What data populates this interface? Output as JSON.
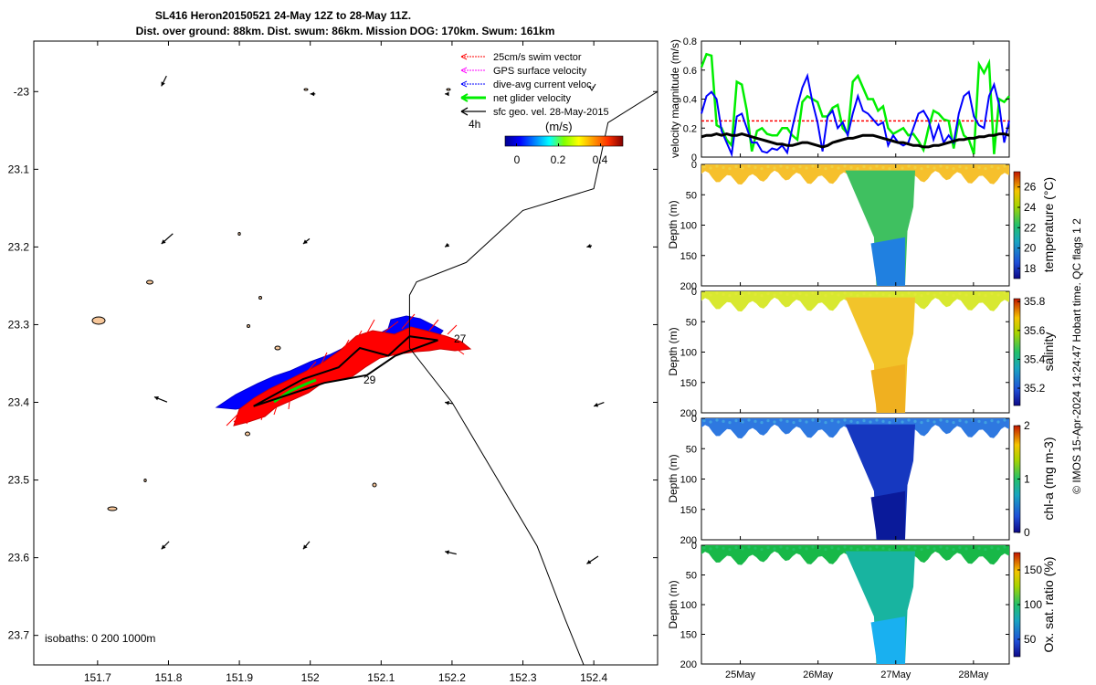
{
  "title": {
    "line1": "SL416 Heron20150521 24-May 12Z to 28-May 11Z.",
    "line2": "Dist. over ground: 88km. Dist. swum: 86km. Mission DOG: 170km. Swum: 161km"
  },
  "side_label": "© IMOS 15-Apr-2024 14:24:47 Hobart time. QC flags 1 2",
  "chart_data": [
    {
      "type": "scatter",
      "name": "map",
      "x_ticks": [
        "151.7",
        "151.8",
        "151.9",
        "152",
        "152.1",
        "152.2",
        "152.3",
        "152.4"
      ],
      "y_ticks": [
        "-23",
        "23.1",
        "23.2",
        "23.3",
        "23.4",
        "23.5",
        "23.6",
        "23.7"
      ],
      "xlim": [
        151.61,
        152.49
      ],
      "ylim": [
        -23.738,
        -22.935
      ],
      "isobaths_label": "isobaths: 0   200  1000m",
      "legend": [
        {
          "label": "25cm/s swim vector",
          "color": "#ff0000"
        },
        {
          "label": "GPS surface velocity",
          "color": "#ff00ff"
        },
        {
          "label": "dive-avg current veloc.",
          "color": "#0000ff"
        },
        {
          "label": "net glider velocity",
          "color": "#00ee00"
        },
        {
          "label": "sfc geo. vel. 28-May-2015",
          "color": "#000000"
        }
      ],
      "colorbar": {
        "label": "(m/s)",
        "timestep_label": "4h",
        "ticks": [
          "0",
          "0.2",
          "0.4"
        ],
        "range": [
          0,
          0.5
        ]
      },
      "day_labels": [
        "27",
        "29"
      ],
      "track": [
        [
          151.92,
          -23.405
        ],
        [
          151.97,
          -23.39
        ],
        [
          152.02,
          -23.375
        ],
        [
          152.08,
          -23.365
        ],
        [
          152.12,
          -23.34
        ],
        [
          152.18,
          -23.32
        ],
        [
          152.14,
          -23.315
        ],
        [
          152.11,
          -23.34
        ],
        [
          152.07,
          -23.33
        ],
        [
          152.04,
          -23.355
        ],
        [
          151.99,
          -23.37
        ],
        [
          151.95,
          -23.39
        ],
        [
          151.92,
          -23.405
        ]
      ],
      "isobath_1000m": [
        [
          152.49,
          -23.0
        ],
        [
          152.42,
          -23.04
        ],
        [
          152.4,
          -23.125
        ],
        [
          152.3,
          -23.153
        ],
        [
          152.22,
          -23.22
        ],
        [
          152.15,
          -23.245
        ],
        [
          152.14,
          -23.262
        ],
        [
          152.14,
          -23.33
        ],
        [
          152.2,
          -23.4
        ],
        [
          152.32,
          -23.585
        ],
        [
          152.36,
          -23.68
        ],
        [
          152.4,
          -23.77
        ]
      ],
      "geo_vectors": [
        {
          "lon": 151.79,
          "lat": -22.993,
          "u": 0.4,
          "v": 0.8
        },
        {
          "lon": 152.0,
          "lat": -23.003,
          "u": 0.4,
          "v": 0.0
        },
        {
          "lon": 152.19,
          "lat": -23.003,
          "u": 0.3,
          "v": 0.0
        },
        {
          "lon": 151.79,
          "lat": -23.196,
          "u": 0.9,
          "v": 0.8
        },
        {
          "lon": 151.99,
          "lat": -23.196,
          "u": 0.5,
          "v": 0.4
        },
        {
          "lon": 152.19,
          "lat": -23.2,
          "u": 0.3,
          "v": 0.2
        },
        {
          "lon": 152.39,
          "lat": -23.2,
          "u": 0.4,
          "v": 0.1
        },
        {
          "lon": 151.78,
          "lat": -23.393,
          "u": 1.0,
          "v": -0.4
        },
        {
          "lon": 152.19,
          "lat": -23.4,
          "u": 0.6,
          "v": -0.1
        },
        {
          "lon": 152.4,
          "lat": -23.405,
          "u": 0.8,
          "v": 0.3
        },
        {
          "lon": 151.79,
          "lat": -23.589,
          "u": 0.6,
          "v": 0.6
        },
        {
          "lon": 151.99,
          "lat": -23.589,
          "u": 0.5,
          "v": 0.6
        },
        {
          "lon": 152.19,
          "lat": -23.592,
          "u": 0.9,
          "v": -0.2
        },
        {
          "lon": 152.39,
          "lat": -23.608,
          "u": 0.9,
          "v": 0.6
        }
      ]
    },
    {
      "type": "line",
      "name": "velocity",
      "ylabel": "velocity magnitude (m/s)",
      "ylim": [
        0,
        0.8
      ],
      "y_ticks": [
        "0",
        "0.2",
        "0.4",
        "0.6",
        "0.8"
      ],
      "x_ticks": [
        "25May",
        "26May",
        "27May",
        "28May"
      ],
      "x_range_days": [
        24.5,
        28.46
      ],
      "reference_line": 0.25,
      "series": [
        {
          "name": "net glider velocity",
          "color": "#00ee00",
          "values": [
            0.62,
            0.71,
            0.7,
            0.22,
            0.2,
            0.12,
            0.08,
            0.52,
            0.5,
            0.32,
            0.04,
            0.18,
            0.2,
            0.16,
            0.15,
            0.15,
            0.2,
            0.2,
            0.15,
            0.12,
            0.38,
            0.42,
            0.4,
            0.38,
            0.28,
            0.28,
            0.34,
            0.36,
            0.2,
            0.16,
            0.52,
            0.56,
            0.48,
            0.4,
            0.4,
            0.32,
            0.35,
            0.2,
            0.16,
            0.18,
            0.2,
            0.15,
            0.16,
            0.11,
            0.05,
            0.2,
            0.32,
            0.3,
            0.26,
            0.25,
            0.06,
            0.26,
            0.15,
            0.12,
            0.02,
            0.64,
            0.58,
            0.65,
            0.02,
            0.4,
            0.38,
            0.42
          ]
        },
        {
          "name": "dive-avg current veloc.",
          "color": "#0000ff",
          "values": [
            0.3,
            0.42,
            0.45,
            0.4,
            0.18,
            0.1,
            0.02,
            0.28,
            0.3,
            0.2,
            0.1,
            0.1,
            0.04,
            0.03,
            0.06,
            0.05,
            0.08,
            0.03,
            0.2,
            0.35,
            0.48,
            0.56,
            0.38,
            0.24,
            0.04,
            0.28,
            0.32,
            0.2,
            0.24,
            0.15,
            0.3,
            0.42,
            0.32,
            0.3,
            0.26,
            0.22,
            0.24,
            0.08,
            0.15,
            0.1,
            0.08,
            0.1,
            0.2,
            0.3,
            0.32,
            0.26,
            0.12,
            0.22,
            0.1,
            0.15,
            0.1,
            0.3,
            0.42,
            0.45,
            0.28,
            0.22,
            0.2,
            0.42,
            0.5,
            0.36,
            0.1,
            0.25
          ]
        },
        {
          "name": "sfc geo. vel.",
          "color": "#000000",
          "values": [
            0.14,
            0.15,
            0.15,
            0.16,
            0.15,
            0.16,
            0.15,
            0.15,
            0.16,
            0.15,
            0.14,
            0.13,
            0.12,
            0.11,
            0.1,
            0.09,
            0.09,
            0.08,
            0.08,
            0.09,
            0.1,
            0.1,
            0.09,
            0.08,
            0.07,
            0.08,
            0.1,
            0.11,
            0.12,
            0.13,
            0.13,
            0.14,
            0.15,
            0.15,
            0.15,
            0.14,
            0.13,
            0.12,
            0.11,
            0.1,
            0.1,
            0.09,
            0.08,
            0.08,
            0.07,
            0.07,
            0.08,
            0.08,
            0.09,
            0.1,
            0.11,
            0.12,
            0.12,
            0.13,
            0.13,
            0.14,
            0.14,
            0.15,
            0.15,
            0.16,
            0.16,
            0.15
          ]
        }
      ]
    },
    {
      "type": "heatmap",
      "name": "temperature",
      "ylabel": "Depth (m)",
      "colorbar_label": "temperature (°C)",
      "colorbar_ticks": [
        "18",
        "20",
        "22",
        "24",
        "26"
      ],
      "y_ticks": [
        "0",
        "50",
        "100",
        "150",
        "200"
      ],
      "clim": [
        17,
        27.5
      ],
      "ylim": [
        0,
        200
      ]
    },
    {
      "type": "heatmap",
      "name": "salinity",
      "ylabel": "Depth (m)",
      "colorbar_label": "salinity",
      "colorbar_ticks": [
        "35.2",
        "35.4",
        "35.6",
        "35.8"
      ],
      "y_ticks": [
        "0",
        "50",
        "100",
        "150",
        "200"
      ],
      "clim": [
        35.08,
        35.82
      ],
      "ylim": [
        0,
        200
      ]
    },
    {
      "type": "heatmap",
      "name": "chlorophyll",
      "ylabel": "Depth (m)",
      "colorbar_label": "chl-a (mg m-3)",
      "colorbar_ticks": [
        "0",
        "1",
        "2"
      ],
      "y_ticks": [
        "0",
        "50",
        "100",
        "150",
        "200"
      ],
      "clim": [
        0,
        2
      ],
      "ylim": [
        0,
        200
      ]
    },
    {
      "type": "heatmap",
      "name": "oxygen",
      "ylabel": "Depth (m)",
      "colorbar_label": "Ox. sat. ratio (%)",
      "colorbar_ticks": [
        "50",
        "100",
        "150"
      ],
      "y_ticks": [
        "0",
        "50",
        "100",
        "150",
        "200"
      ],
      "x_ticks": [
        "25May",
        "26May",
        "27May",
        "28May"
      ],
      "clim": [
        25,
        175
      ],
      "ylim": [
        0,
        200
      ]
    }
  ]
}
